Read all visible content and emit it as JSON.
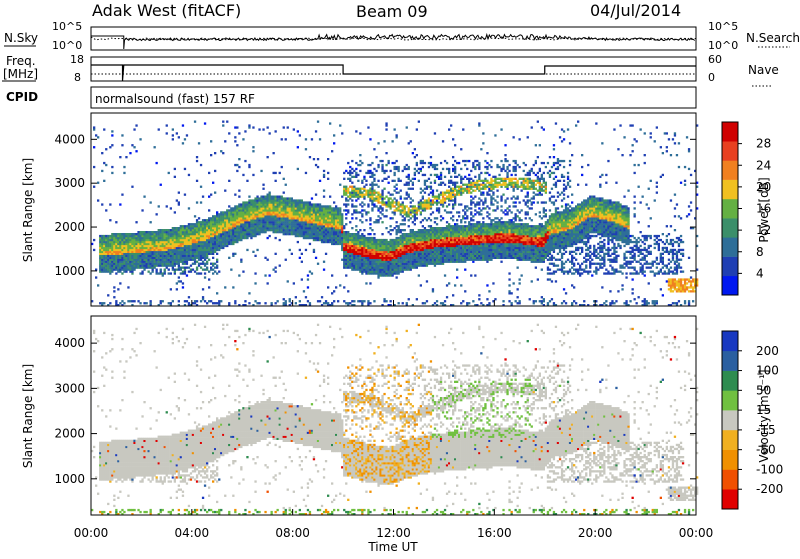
{
  "header": {
    "station": "Adak West (fitACF)",
    "beam": "Beam 09",
    "date": "04/Jul/2014"
  },
  "noise_panel": {
    "left_label": "N.Sky",
    "right_label": "N.Search",
    "left_ticks": [
      "10^5",
      "10^0"
    ],
    "right_ticks": [
      "10^5",
      "10^0"
    ]
  },
  "freq_panel": {
    "left_label_1": "Freq.",
    "left_label_2": "[MHz]",
    "right_label": "Nave",
    "left_ticks": [
      "18",
      "8"
    ],
    "right_ticks": [
      "60",
      "0"
    ]
  },
  "cpid": {
    "label": "CPID",
    "value": "normalsound (fast) 157 RF"
  },
  "colors": {
    "power_scale": [
      "#0018f0",
      "#1f3fb3",
      "#2e6e98",
      "#3b8f6a",
      "#64b043",
      "#f0c020",
      "#f08020",
      "#e84020",
      "#d00000"
    ],
    "velocity_scale": [
      "#e00000",
      "#f05000",
      "#f09000",
      "#f0b020",
      "#c8c8c0",
      "#70c040",
      "#2e8c50",
      "#2a5fa0",
      "#1838c0"
    ]
  },
  "chart_data": [
    {
      "type": "heatmap",
      "name": "power",
      "xlabel": "",
      "ylabel": "Slant Range [km]",
      "x_range_hours": [
        0,
        24
      ],
      "ylim": [
        200,
        4600
      ],
      "y_ticks": [
        1000,
        2000,
        3000,
        4000
      ],
      "colorbar": {
        "label": "Power [dB]",
        "ticks": [
          "4",
          "8",
          "12",
          "16",
          "20",
          "24",
          "28"
        ],
        "range": [
          0,
          32
        ]
      }
    },
    {
      "type": "heatmap",
      "name": "velocity",
      "xlabel": "Time UT",
      "ylabel": "Slant Range [km]",
      "x_range_hours": [
        0,
        24
      ],
      "x_ticks": [
        "00:00",
        "04:00",
        "08:00",
        "12:00",
        "16:00",
        "20:00",
        "00:00"
      ],
      "ylim": [
        200,
        4600
      ],
      "y_ticks": [
        1000,
        2000,
        3000,
        4000
      ],
      "colorbar": {
        "label": "Velocity [m s⁻¹]",
        "ticks": [
          "-200",
          "-100",
          "-50",
          "-15",
          "15",
          "50",
          "100",
          "200"
        ]
      }
    }
  ]
}
